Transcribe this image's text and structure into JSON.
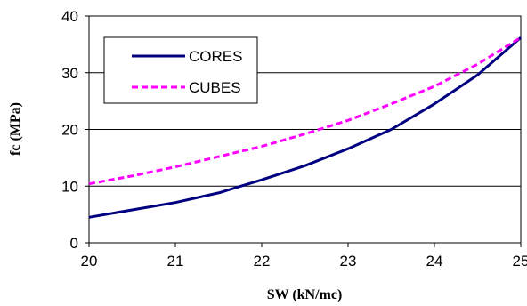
{
  "chart_data": {
    "type": "line",
    "title": "",
    "xlabel": "SW (kN/mc)",
    "ylabel": "fc (MPa)",
    "xlim": [
      20,
      25
    ],
    "ylim": [
      0,
      40
    ],
    "x_ticks": [
      "20",
      "21",
      "22",
      "23",
      "24",
      "25"
    ],
    "y_ticks": [
      "0",
      "10",
      "20",
      "30",
      "40"
    ],
    "grid": "horizontal",
    "legend_position": "top-left",
    "x": [
      20,
      20.5,
      21,
      21.5,
      22,
      22.5,
      23,
      23.5,
      24,
      24.5,
      25
    ],
    "series": [
      {
        "name": "CORES",
        "color": "#000080",
        "style": "solid",
        "values": [
          4.5,
          5.8,
          7.1,
          8.8,
          11.1,
          13.6,
          16.6,
          20.0,
          24.5,
          29.6,
          36.2
        ]
      },
      {
        "name": "CUBES",
        "color": "#ff00ff",
        "style": "dashed",
        "values": [
          10.4,
          11.8,
          13.4,
          15.2,
          17.0,
          19.2,
          21.6,
          24.5,
          27.6,
          31.5,
          36.2
        ]
      }
    ]
  }
}
